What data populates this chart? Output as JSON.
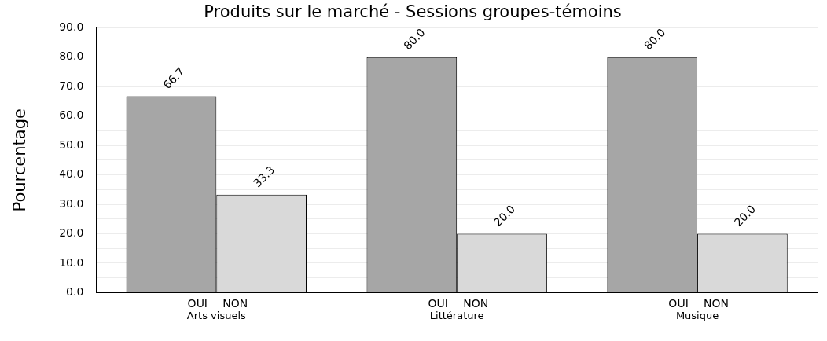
{
  "chart_data": {
    "type": "bar",
    "title": "Produits sur le marché - Sessions groupes-témoins",
    "ylabel": "Pourcentage",
    "categories": [
      "Arts visuels",
      "Littérature",
      "Musique"
    ],
    "series": [
      {
        "name": "OUI",
        "color": "#a6a6a6",
        "values": [
          66.7,
          80,
          80
        ],
        "value_labels": [
          "66.7",
          "80.0",
          "80.0"
        ]
      },
      {
        "name": "NON",
        "color": "#d9d9d9",
        "values": [
          33.3,
          20,
          20
        ],
        "value_labels": [
          "33.3",
          "20.0",
          "20.0"
        ]
      }
    ],
    "ylim": [
      0,
      90
    ],
    "yticks": [
      {
        "value": 0,
        "label": "0.0"
      },
      {
        "value": 5,
        "label": null
      },
      {
        "value": 10,
        "label": "10.0"
      },
      {
        "value": 15,
        "label": null
      },
      {
        "value": 20,
        "label": "20.0"
      },
      {
        "value": 25,
        "label": null
      },
      {
        "value": 30,
        "label": "30.0"
      },
      {
        "value": 35,
        "label": null
      },
      {
        "value": 40,
        "label": "40.0"
      },
      {
        "value": 45,
        "label": null
      },
      {
        "value": 50,
        "label": "50.0"
      },
      {
        "value": 55,
        "label": null
      },
      {
        "value": 60,
        "label": "60.0"
      },
      {
        "value": 65,
        "label": null
      },
      {
        "value": 70,
        "label": "70.0"
      },
      {
        "value": 75,
        "label": null
      },
      {
        "value": 80,
        "label": "80.0"
      },
      {
        "value": 85,
        "label": null
      },
      {
        "value": 90,
        "label": "90.0"
      }
    ],
    "grid": "y",
    "legend": false
  }
}
